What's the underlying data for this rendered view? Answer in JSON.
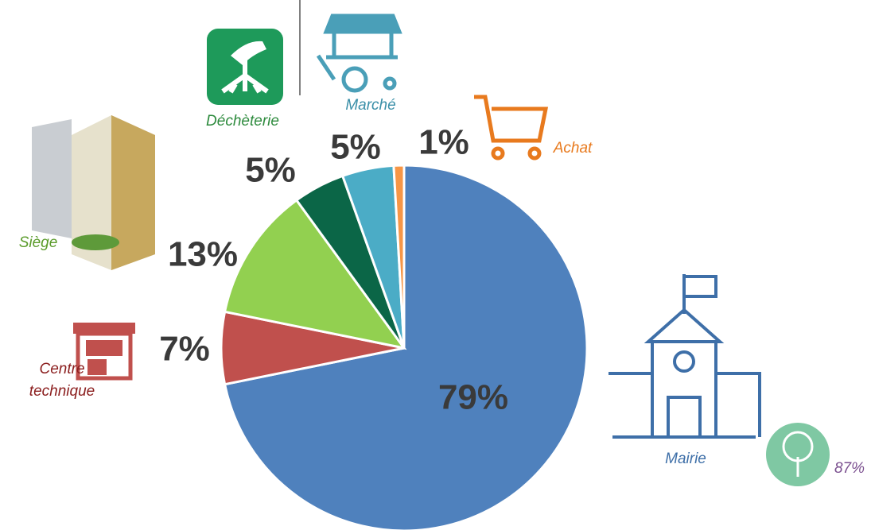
{
  "chart_data": {
    "type": "pie",
    "categories": [
      "Mairie",
      "Centre technique",
      "Siège",
      "Déchèterie",
      "Marché",
      "Achat"
    ],
    "values": [
      79,
      7,
      13,
      5,
      5,
      1
    ],
    "value_labels": [
      "79%",
      "7%",
      "13%",
      "5%",
      "5%",
      "1%"
    ],
    "colors": [
      "#4f81bd",
      "#c0504d",
      "#92d050",
      "#0b6647",
      "#4bacc6",
      "#f79646"
    ],
    "annotation": "87%"
  }
}
